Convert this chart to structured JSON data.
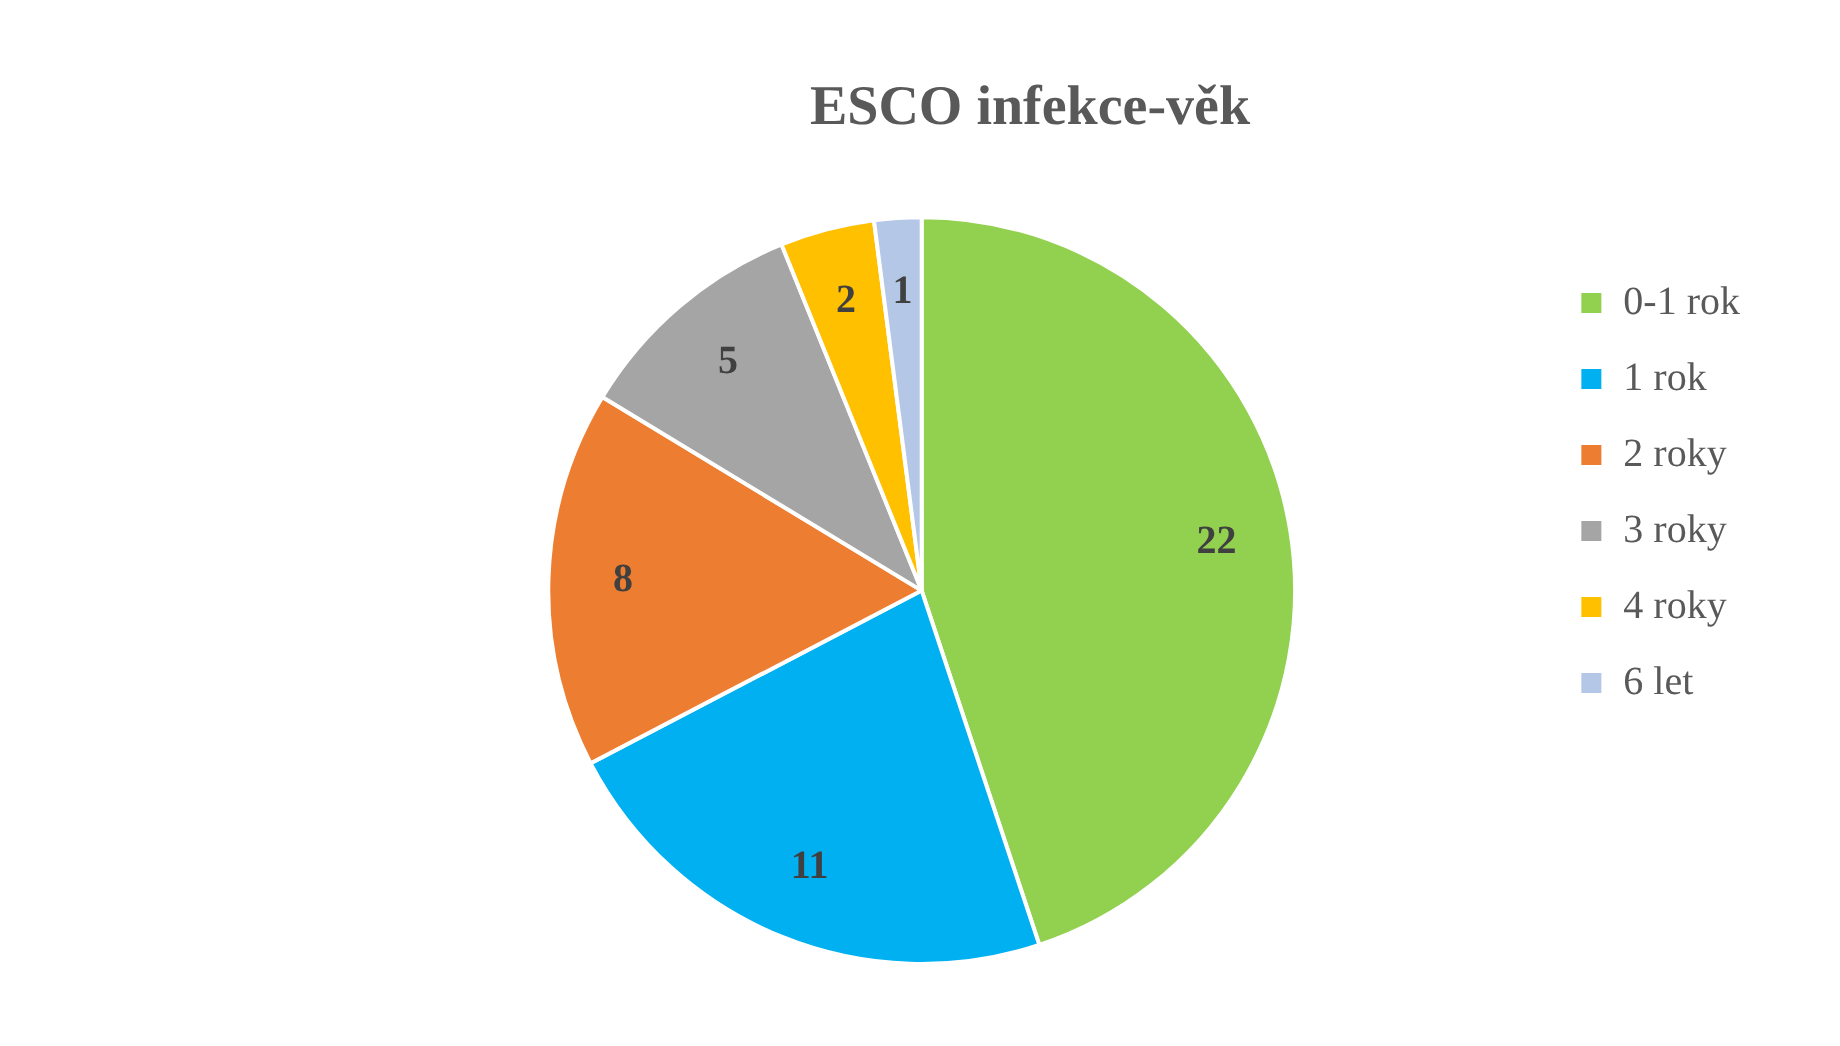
{
  "chart_data": {
    "type": "pie",
    "title": "ESCO infekce-věk",
    "categories": [
      "0-1 rok",
      "1 rok",
      "2 roky",
      "3 roky",
      "4 roky",
      "6 let"
    ],
    "values": [
      22,
      11,
      8,
      5,
      2,
      1
    ],
    "colors": [
      "#92d050",
      "#00b0f0",
      "#ed7d31",
      "#a5a5a5",
      "#ffc000",
      "#b4c7e7"
    ],
    "data_labels": true,
    "legend": "right"
  }
}
